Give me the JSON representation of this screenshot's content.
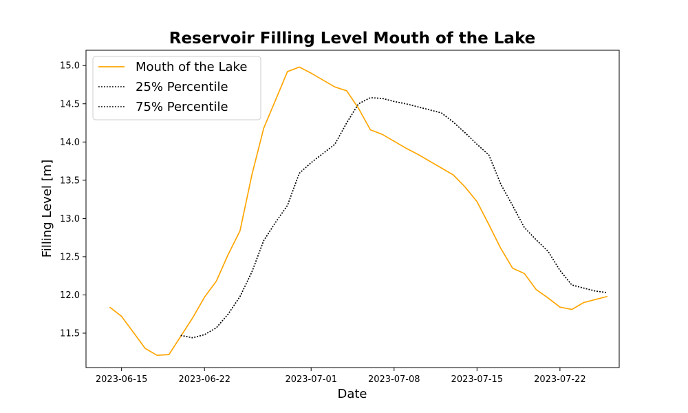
{
  "chart_data": {
    "type": "line",
    "title": "Reservoir Filling Level Mouth of the Lake",
    "xlabel": "Date",
    "ylabel": "Filling Level [m]",
    "xlim": [
      "2023-06-12",
      "2023-07-27"
    ],
    "ylim": [
      11.05,
      15.2
    ],
    "x_ticks": [
      "2023-06-15",
      "2023-06-22",
      "2023-07-01",
      "2023-07-08",
      "2023-07-15",
      "2023-07-22"
    ],
    "y_ticks": [
      "11.5",
      "12.0",
      "12.5",
      "13.0",
      "13.5",
      "14.0",
      "14.5",
      "15.0"
    ],
    "legend_position": "upper-left",
    "grid": false,
    "series": [
      {
        "name": "Mouth of the Lake",
        "color": "#ffa500",
        "style": "solid",
        "x": [
          "2023-06-14",
          "2023-06-15",
          "2023-06-16",
          "2023-06-17",
          "2023-06-18",
          "2023-06-19",
          "2023-06-20",
          "2023-06-21",
          "2023-06-22",
          "2023-06-23",
          "2023-06-24",
          "2023-06-25",
          "2023-06-26",
          "2023-06-27",
          "2023-06-28",
          "2023-06-29",
          "2023-06-30",
          "2023-07-01",
          "2023-07-02",
          "2023-07-03",
          "2023-07-04",
          "2023-07-05",
          "2023-07-06",
          "2023-07-07",
          "2023-07-08",
          "2023-07-09",
          "2023-07-10",
          "2023-07-11",
          "2023-07-12",
          "2023-07-13",
          "2023-07-14",
          "2023-07-15",
          "2023-07-16",
          "2023-07-17",
          "2023-07-18",
          "2023-07-19",
          "2023-07-20",
          "2023-07-21",
          "2023-07-22",
          "2023-07-23",
          "2023-07-24",
          "2023-07-25",
          "2023-07-26"
        ],
        "values": [
          11.84,
          11.72,
          11.51,
          11.3,
          11.21,
          11.22,
          11.46,
          11.7,
          11.97,
          12.18,
          12.53,
          12.84,
          13.57,
          14.18,
          14.55,
          14.92,
          14.98,
          14.9,
          14.81,
          14.72,
          14.67,
          14.44,
          14.16,
          14.1,
          14.01,
          13.92,
          13.84,
          13.75,
          13.66,
          13.57,
          13.41,
          13.22,
          12.92,
          12.61,
          12.35,
          12.28,
          12.07,
          11.96,
          11.84,
          11.81,
          11.9,
          11.94,
          11.98
        ]
      },
      {
        "name": "25% Percentile",
        "color": "#000000",
        "style": "dotted",
        "x": [
          "2023-06-20",
          "2023-06-21",
          "2023-06-22",
          "2023-06-23",
          "2023-06-24",
          "2023-06-25",
          "2023-06-26",
          "2023-06-27",
          "2023-06-28",
          "2023-06-29",
          "2023-06-30",
          "2023-07-01",
          "2023-07-02",
          "2023-07-03",
          "2023-07-04",
          "2023-07-05",
          "2023-07-06",
          "2023-07-07",
          "2023-07-08",
          "2023-07-09",
          "2023-07-10",
          "2023-07-11",
          "2023-07-12",
          "2023-07-13",
          "2023-07-14",
          "2023-07-15",
          "2023-07-16",
          "2023-07-17",
          "2023-07-18",
          "2023-07-19",
          "2023-07-20",
          "2023-07-21",
          "2023-07-22",
          "2023-07-23",
          "2023-07-24",
          "2023-07-25",
          "2023-07-26"
        ],
        "values": [
          11.47,
          11.44,
          11.48,
          11.57,
          11.75,
          11.98,
          12.3,
          12.71,
          12.95,
          13.17,
          13.59,
          13.73,
          13.85,
          13.97,
          14.25,
          14.5,
          14.58,
          14.57,
          14.53,
          14.5,
          14.46,
          14.42,
          14.38,
          14.26,
          14.12,
          13.97,
          13.83,
          13.45,
          13.17,
          12.88,
          12.72,
          12.57,
          12.32,
          12.13,
          12.09,
          12.05,
          12.03
        ]
      },
      {
        "name": "75% Percentile",
        "color": "#000000",
        "style": "dotted",
        "x": [
          "2023-06-20",
          "2023-06-21",
          "2023-06-22",
          "2023-06-23",
          "2023-06-24",
          "2023-06-25",
          "2023-06-26",
          "2023-06-27",
          "2023-06-28",
          "2023-06-29",
          "2023-06-30",
          "2023-07-01",
          "2023-07-02",
          "2023-07-03",
          "2023-07-04",
          "2023-07-05",
          "2023-07-06",
          "2023-07-07",
          "2023-07-08",
          "2023-07-09",
          "2023-07-10",
          "2023-07-11",
          "2023-07-12",
          "2023-07-13",
          "2023-07-14",
          "2023-07-15",
          "2023-07-16",
          "2023-07-17",
          "2023-07-18",
          "2023-07-19",
          "2023-07-20",
          "2023-07-21",
          "2023-07-22",
          "2023-07-23",
          "2023-07-24",
          "2023-07-25",
          "2023-07-26"
        ],
        "values": [
          11.47,
          11.44,
          11.48,
          11.57,
          11.75,
          11.98,
          12.3,
          12.71,
          12.95,
          13.17,
          13.59,
          13.73,
          13.85,
          13.97,
          14.25,
          14.5,
          14.58,
          14.57,
          14.53,
          14.5,
          14.46,
          14.42,
          14.38,
          14.26,
          14.12,
          13.97,
          13.83,
          13.45,
          13.17,
          12.88,
          12.72,
          12.57,
          12.32,
          12.13,
          12.09,
          12.05,
          12.03
        ]
      }
    ]
  }
}
